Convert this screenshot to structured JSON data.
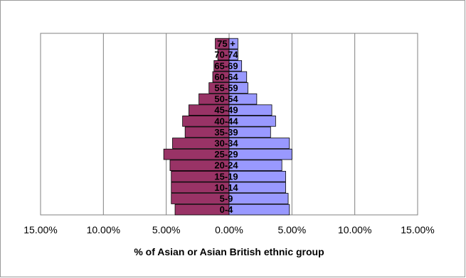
{
  "chart_data": {
    "type": "bar",
    "orientation": "horizontal",
    "categories": [
      "0-4",
      "5-9",
      "10-14",
      "15-19",
      "20-24",
      "25-29",
      "30-34",
      "35-39",
      "40-44",
      "45-49",
      "50-54",
      "55-59",
      "60-64",
      "65-69",
      "70-74",
      "75 +"
    ],
    "series": [
      {
        "color": "#993366",
        "values": [
          -4.3,
          -4.6,
          -4.6,
          -4.6,
          -4.7,
          -5.2,
          -4.5,
          -3.5,
          -3.7,
          -3.2,
          -2.4,
          -1.6,
          -1.3,
          -1.2,
          -0.9,
          -1.1
        ]
      },
      {
        "color": "#9999ff",
        "values": [
          4.8,
          4.7,
          4.5,
          4.5,
          4.2,
          5.0,
          4.8,
          3.3,
          3.7,
          3.4,
          2.2,
          1.5,
          1.4,
          1.0,
          0.7,
          0.7
        ]
      }
    ],
    "xlim": [
      -15,
      15
    ],
    "xticks": [
      -15,
      -10,
      -5,
      0,
      5,
      10,
      15
    ],
    "xtick_labels": [
      "15.00%",
      "10.00%",
      "5.00%",
      "0.00%",
      "5.00%",
      "10.00%",
      "15.00%"
    ],
    "xlabel": "% of Asian or Asian British ethnic group",
    "grid": "vertical",
    "legend": "none"
  }
}
